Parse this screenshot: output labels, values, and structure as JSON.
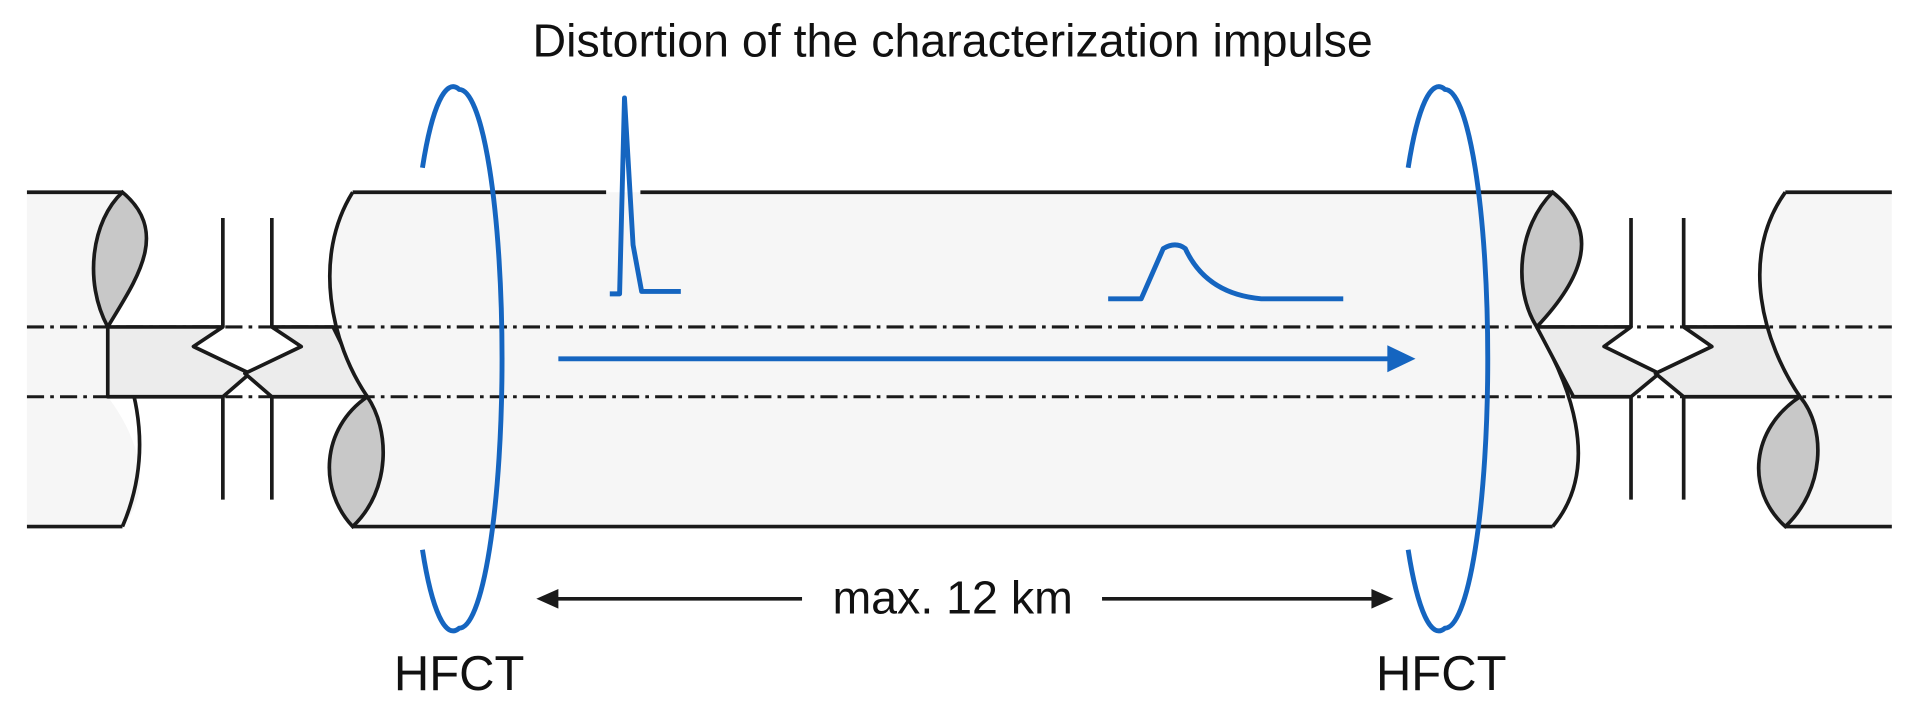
{
  "title": "Distortion of the characterization impulse",
  "distance_label": "max. 12 km",
  "sensors": [
    {
      "label": "HFCT"
    },
    {
      "label": "HFCT"
    }
  ]
}
